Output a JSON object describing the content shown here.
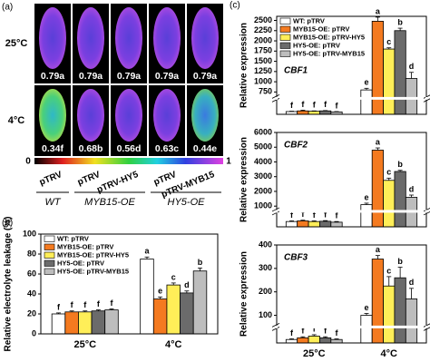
{
  "image_panel": {
    "panel_label": "(a)",
    "rows": [
      "25°C",
      "4°C"
    ],
    "values": [
      [
        "0.79a",
        "0.79a",
        "0.79a",
        "0.79a",
        "0.79a"
      ],
      [
        "0.34f",
        "0.68b",
        "0.56d",
        "0.63c",
        "0.44e"
      ]
    ],
    "colorbar": [
      "0",
      "1"
    ],
    "treatments": [
      "pTRV",
      "pTRV",
      "pTRV-HY5",
      "pTRV",
      "pTRV-MYB15"
    ],
    "genotypes": [
      "WT",
      "MYB15-OE",
      "HY5-OE"
    ]
  },
  "chart_data": [
    {
      "type": "bar",
      "panel_label": "(b)",
      "ylabel": "Relative electrolyte leakage (%)",
      "categories": [
        "25°C",
        "4°C"
      ],
      "ylim": [
        0,
        100
      ],
      "yticks": [
        0,
        20,
        40,
        60,
        80,
        100
      ],
      "legend": "upper left",
      "series": [
        {
          "name": "WT: pTRV",
          "color": "#ffffff",
          "values": [
            20,
            75
          ],
          "errors": [
            1,
            2
          ],
          "letters": [
            "f",
            "a"
          ]
        },
        {
          "name": "MYB15-OE: pTRV",
          "color": "#f47a20",
          "values": [
            22,
            35
          ],
          "errors": [
            1,
            2
          ],
          "letters": [
            "f",
            "e"
          ]
        },
        {
          "name": "MYB15-OE: pTRV-HY5",
          "color": "#ffee58",
          "values": [
            22,
            49
          ],
          "errors": [
            1,
            2
          ],
          "letters": [
            "f",
            "c"
          ]
        },
        {
          "name": "HY5-OE: pTRV",
          "color": "#6b6b6b",
          "values": [
            23,
            41
          ],
          "errors": [
            1,
            2
          ],
          "letters": [
            "f",
            "d"
          ]
        },
        {
          "name": "HY5-OE: pTRV-MYB15",
          "color": "#bdbdbd",
          "values": [
            24,
            63
          ],
          "errors": [
            1,
            3
          ],
          "letters": [
            "f",
            "b"
          ]
        }
      ]
    },
    {
      "type": "bar",
      "panel_label": "(c)",
      "title": "CBF1",
      "ylabel": "Relative expression",
      "ylim": [
        0,
        2600
      ],
      "ybreak": [
        40,
        650
      ],
      "yticks": [
        750,
        1000,
        1250,
        1500,
        1750,
        2000,
        2250,
        2500
      ],
      "legend": "upper left",
      "series": [
        {
          "name": "WT: pTRV",
          "color": "#ffffff",
          "values": [
            8,
            800
          ],
          "errors": [
            1,
            40
          ],
          "letters": [
            "f",
            "e"
          ]
        },
        {
          "name": "MYB15-OE: pTRV",
          "color": "#f47a20",
          "values": [
            10,
            2480
          ],
          "errors": [
            2,
            100
          ],
          "letters": [
            "f",
            "a"
          ]
        },
        {
          "name": "MYB15-OE: pTRV-HY5",
          "color": "#ffee58",
          "values": [
            9,
            1800
          ],
          "errors": [
            1,
            30
          ],
          "letters": [
            "f",
            "c"
          ]
        },
        {
          "name": "HY5-OE: pTRV",
          "color": "#6b6b6b",
          "values": [
            10,
            2250
          ],
          "errors": [
            1,
            60
          ],
          "letters": [
            "f",
            "b"
          ]
        },
        {
          "name": "HY5-OE: pTRV-MYB15",
          "color": "#bdbdbd",
          "values": [
            7,
            1080
          ],
          "errors": [
            1,
            150
          ],
          "letters": [
            "f",
            "d"
          ]
        }
      ]
    },
    {
      "type": "bar",
      "title": "CBF2",
      "ylabel": "Relative expression",
      "ylim": [
        0,
        6000
      ],
      "ybreak": [
        100,
        800
      ],
      "yticks": [
        1000,
        2000,
        3000,
        4000,
        5000,
        6000
      ],
      "series": [
        {
          "color": "#ffffff",
          "values": [
            40,
            1100
          ],
          "errors": [
            5,
            100
          ],
          "letters": [
            "f",
            "e"
          ]
        },
        {
          "color": "#f47a20",
          "values": [
            45,
            4800
          ],
          "errors": [
            5,
            150
          ],
          "letters": [
            "f",
            "a"
          ]
        },
        {
          "color": "#ffee58",
          "values": [
            40,
            2750
          ],
          "errors": [
            5,
            150
          ],
          "letters": [
            "f",
            "c"
          ]
        },
        {
          "color": "#6b6b6b",
          "values": [
            42,
            3350
          ],
          "errors": [
            5,
            80
          ],
          "letters": [
            "f",
            "b"
          ]
        },
        {
          "color": "#bdbdbd",
          "values": [
            35,
            1600
          ],
          "errors": [
            5,
            150
          ],
          "letters": [
            "f",
            "d"
          ]
        }
      ]
    },
    {
      "type": "bar",
      "title": "CBF3",
      "ylabel": "Relative expression",
      "categories": [
        "25°C",
        "4°C"
      ],
      "ylim": [
        0,
        400
      ],
      "ybreak": [
        4,
        60
      ],
      "yticks": [
        100,
        200,
        300,
        400
      ],
      "series": [
        {
          "color": "#ffffff",
          "values": [
            1,
            100
          ],
          "errors": [
            0.2,
            8
          ],
          "letters": [
            "f",
            "e"
          ]
        },
        {
          "color": "#f47a20",
          "values": [
            1.5,
            340
          ],
          "errors": [
            0.3,
            15
          ],
          "letters": [
            "f",
            "a"
          ]
        },
        {
          "color": "#ffee58",
          "values": [
            2,
            225
          ],
          "errors": [
            0.4,
            40
          ],
          "letters": [
            "f",
            "c"
          ]
        },
        {
          "color": "#6b6b6b",
          "values": [
            1.5,
            260
          ],
          "errors": [
            0.3,
            45
          ],
          "letters": [
            "f",
            "b"
          ]
        },
        {
          "color": "#bdbdbd",
          "values": [
            1,
            170
          ],
          "errors": [
            0.2,
            45
          ],
          "letters": [
            "f",
            "d"
          ]
        }
      ]
    }
  ]
}
